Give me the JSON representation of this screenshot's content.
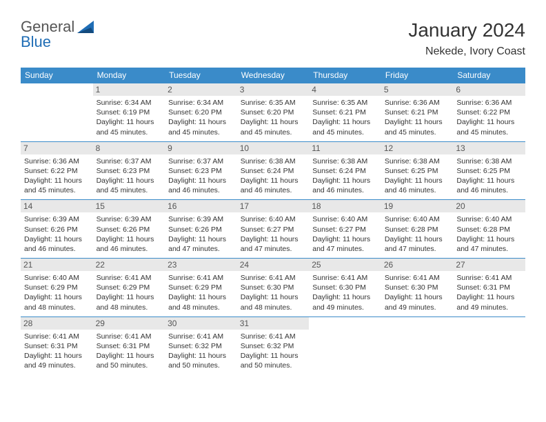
{
  "logo": {
    "text_general": "General",
    "text_blue": "Blue"
  },
  "title": "January 2024",
  "location": "Nekede, Ivory Coast",
  "colors": {
    "header_bg": "#3a8bc9",
    "header_text": "#ffffff",
    "daynum_bg": "#e8e8e8",
    "daynum_text": "#555555",
    "border": "#3a8bc9",
    "body_text": "#333333",
    "logo_blue": "#1f6db5",
    "logo_gray": "#555555",
    "page_bg": "#ffffff"
  },
  "day_headers": [
    "Sunday",
    "Monday",
    "Tuesday",
    "Wednesday",
    "Thursday",
    "Friday",
    "Saturday"
  ],
  "weeks": [
    [
      {
        "num": "",
        "sunrise": "",
        "sunset": "",
        "daylight1": "",
        "daylight2": ""
      },
      {
        "num": "1",
        "sunrise": "Sunrise: 6:34 AM",
        "sunset": "Sunset: 6:19 PM",
        "daylight1": "Daylight: 11 hours",
        "daylight2": "and 45 minutes."
      },
      {
        "num": "2",
        "sunrise": "Sunrise: 6:34 AM",
        "sunset": "Sunset: 6:20 PM",
        "daylight1": "Daylight: 11 hours",
        "daylight2": "and 45 minutes."
      },
      {
        "num": "3",
        "sunrise": "Sunrise: 6:35 AM",
        "sunset": "Sunset: 6:20 PM",
        "daylight1": "Daylight: 11 hours",
        "daylight2": "and 45 minutes."
      },
      {
        "num": "4",
        "sunrise": "Sunrise: 6:35 AM",
        "sunset": "Sunset: 6:21 PM",
        "daylight1": "Daylight: 11 hours",
        "daylight2": "and 45 minutes."
      },
      {
        "num": "5",
        "sunrise": "Sunrise: 6:36 AM",
        "sunset": "Sunset: 6:21 PM",
        "daylight1": "Daylight: 11 hours",
        "daylight2": "and 45 minutes."
      },
      {
        "num": "6",
        "sunrise": "Sunrise: 6:36 AM",
        "sunset": "Sunset: 6:22 PM",
        "daylight1": "Daylight: 11 hours",
        "daylight2": "and 45 minutes."
      }
    ],
    [
      {
        "num": "7",
        "sunrise": "Sunrise: 6:36 AM",
        "sunset": "Sunset: 6:22 PM",
        "daylight1": "Daylight: 11 hours",
        "daylight2": "and 45 minutes."
      },
      {
        "num": "8",
        "sunrise": "Sunrise: 6:37 AM",
        "sunset": "Sunset: 6:23 PM",
        "daylight1": "Daylight: 11 hours",
        "daylight2": "and 45 minutes."
      },
      {
        "num": "9",
        "sunrise": "Sunrise: 6:37 AM",
        "sunset": "Sunset: 6:23 PM",
        "daylight1": "Daylight: 11 hours",
        "daylight2": "and 46 minutes."
      },
      {
        "num": "10",
        "sunrise": "Sunrise: 6:38 AM",
        "sunset": "Sunset: 6:24 PM",
        "daylight1": "Daylight: 11 hours",
        "daylight2": "and 46 minutes."
      },
      {
        "num": "11",
        "sunrise": "Sunrise: 6:38 AM",
        "sunset": "Sunset: 6:24 PM",
        "daylight1": "Daylight: 11 hours",
        "daylight2": "and 46 minutes."
      },
      {
        "num": "12",
        "sunrise": "Sunrise: 6:38 AM",
        "sunset": "Sunset: 6:25 PM",
        "daylight1": "Daylight: 11 hours",
        "daylight2": "and 46 minutes."
      },
      {
        "num": "13",
        "sunrise": "Sunrise: 6:38 AM",
        "sunset": "Sunset: 6:25 PM",
        "daylight1": "Daylight: 11 hours",
        "daylight2": "and 46 minutes."
      }
    ],
    [
      {
        "num": "14",
        "sunrise": "Sunrise: 6:39 AM",
        "sunset": "Sunset: 6:26 PM",
        "daylight1": "Daylight: 11 hours",
        "daylight2": "and 46 minutes."
      },
      {
        "num": "15",
        "sunrise": "Sunrise: 6:39 AM",
        "sunset": "Sunset: 6:26 PM",
        "daylight1": "Daylight: 11 hours",
        "daylight2": "and 46 minutes."
      },
      {
        "num": "16",
        "sunrise": "Sunrise: 6:39 AM",
        "sunset": "Sunset: 6:26 PM",
        "daylight1": "Daylight: 11 hours",
        "daylight2": "and 47 minutes."
      },
      {
        "num": "17",
        "sunrise": "Sunrise: 6:40 AM",
        "sunset": "Sunset: 6:27 PM",
        "daylight1": "Daylight: 11 hours",
        "daylight2": "and 47 minutes."
      },
      {
        "num": "18",
        "sunrise": "Sunrise: 6:40 AM",
        "sunset": "Sunset: 6:27 PM",
        "daylight1": "Daylight: 11 hours",
        "daylight2": "and 47 minutes."
      },
      {
        "num": "19",
        "sunrise": "Sunrise: 6:40 AM",
        "sunset": "Sunset: 6:28 PM",
        "daylight1": "Daylight: 11 hours",
        "daylight2": "and 47 minutes."
      },
      {
        "num": "20",
        "sunrise": "Sunrise: 6:40 AM",
        "sunset": "Sunset: 6:28 PM",
        "daylight1": "Daylight: 11 hours",
        "daylight2": "and 47 minutes."
      }
    ],
    [
      {
        "num": "21",
        "sunrise": "Sunrise: 6:40 AM",
        "sunset": "Sunset: 6:29 PM",
        "daylight1": "Daylight: 11 hours",
        "daylight2": "and 48 minutes."
      },
      {
        "num": "22",
        "sunrise": "Sunrise: 6:41 AM",
        "sunset": "Sunset: 6:29 PM",
        "daylight1": "Daylight: 11 hours",
        "daylight2": "and 48 minutes."
      },
      {
        "num": "23",
        "sunrise": "Sunrise: 6:41 AM",
        "sunset": "Sunset: 6:29 PM",
        "daylight1": "Daylight: 11 hours",
        "daylight2": "and 48 minutes."
      },
      {
        "num": "24",
        "sunrise": "Sunrise: 6:41 AM",
        "sunset": "Sunset: 6:30 PM",
        "daylight1": "Daylight: 11 hours",
        "daylight2": "and 48 minutes."
      },
      {
        "num": "25",
        "sunrise": "Sunrise: 6:41 AM",
        "sunset": "Sunset: 6:30 PM",
        "daylight1": "Daylight: 11 hours",
        "daylight2": "and 49 minutes."
      },
      {
        "num": "26",
        "sunrise": "Sunrise: 6:41 AM",
        "sunset": "Sunset: 6:30 PM",
        "daylight1": "Daylight: 11 hours",
        "daylight2": "and 49 minutes."
      },
      {
        "num": "27",
        "sunrise": "Sunrise: 6:41 AM",
        "sunset": "Sunset: 6:31 PM",
        "daylight1": "Daylight: 11 hours",
        "daylight2": "and 49 minutes."
      }
    ],
    [
      {
        "num": "28",
        "sunrise": "Sunrise: 6:41 AM",
        "sunset": "Sunset: 6:31 PM",
        "daylight1": "Daylight: 11 hours",
        "daylight2": "and 49 minutes."
      },
      {
        "num": "29",
        "sunrise": "Sunrise: 6:41 AM",
        "sunset": "Sunset: 6:31 PM",
        "daylight1": "Daylight: 11 hours",
        "daylight2": "and 50 minutes."
      },
      {
        "num": "30",
        "sunrise": "Sunrise: 6:41 AM",
        "sunset": "Sunset: 6:32 PM",
        "daylight1": "Daylight: 11 hours",
        "daylight2": "and 50 minutes."
      },
      {
        "num": "31",
        "sunrise": "Sunrise: 6:41 AM",
        "sunset": "Sunset: 6:32 PM",
        "daylight1": "Daylight: 11 hours",
        "daylight2": "and 50 minutes."
      },
      {
        "num": "",
        "sunrise": "",
        "sunset": "",
        "daylight1": "",
        "daylight2": ""
      },
      {
        "num": "",
        "sunrise": "",
        "sunset": "",
        "daylight1": "",
        "daylight2": ""
      },
      {
        "num": "",
        "sunrise": "",
        "sunset": "",
        "daylight1": "",
        "daylight2": ""
      }
    ]
  ]
}
